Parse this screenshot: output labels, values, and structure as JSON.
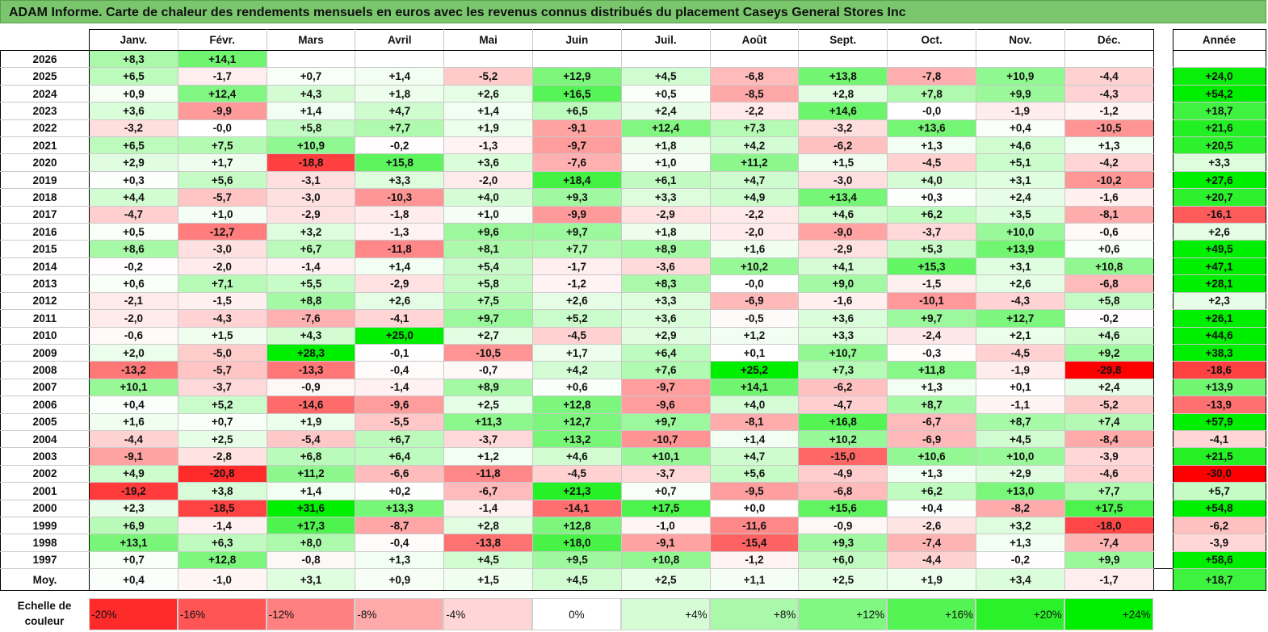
{
  "title": "ADAM Informe. Carte de chaleur des rendements mensuels en euros avec les revenus connus distribués du placement Caseys General Stores Inc",
  "chart_data": {
    "type": "heatmap",
    "months": [
      "Janv.",
      "Févr.",
      "Mars",
      "Avril",
      "Mai",
      "Juin",
      "Juil.",
      "Août",
      "Sept.",
      "Oct.",
      "Nov.",
      "Déc."
    ],
    "year_header": "Année",
    "rows": [
      {
        "year": "2026",
        "values": [
          "+8,3",
          "+14,1",
          "",
          "",
          "",
          "",
          "",
          "",
          "",
          "",
          "",
          ""
        ],
        "annual": ""
      },
      {
        "year": "2025",
        "values": [
          "+6,5",
          "-1,7",
          "+0,7",
          "+1,4",
          "-5,2",
          "+12,9",
          "+4,5",
          "-6,8",
          "+13,8",
          "-7,8",
          "+10,9",
          "-4,4"
        ],
        "annual": "+24,0"
      },
      {
        "year": "2024",
        "values": [
          "+0,9",
          "+12,4",
          "+4,3",
          "+1,8",
          "+2,6",
          "+16,5",
          "+0,5",
          "-8,5",
          "+2,8",
          "+7,8",
          "+9,9",
          "-4,3"
        ],
        "annual": "+54,2"
      },
      {
        "year": "2023",
        "values": [
          "+3,6",
          "-9,9",
          "+1,4",
          "+4,7",
          "+1,4",
          "+6,5",
          "+2,4",
          "-2,2",
          "+14,6",
          "-0,0",
          "-1,9",
          "-1,2"
        ],
        "annual": "+18,7"
      },
      {
        "year": "2022",
        "values": [
          "-3,2",
          "-0,0",
          "+5,8",
          "+7,7",
          "+1,9",
          "-9,1",
          "+12,4",
          "+7,3",
          "-3,2",
          "+13,6",
          "+0,4",
          "-10,5"
        ],
        "annual": "+21,6"
      },
      {
        "year": "2021",
        "values": [
          "+6,5",
          "+7,5",
          "+10,9",
          "-0,2",
          "-1,3",
          "-9,7",
          "+1,8",
          "+4,2",
          "-6,2",
          "+1,3",
          "+4,6",
          "+1,3"
        ],
        "annual": "+20,5"
      },
      {
        "year": "2020",
        "values": [
          "+2,9",
          "+1,7",
          "-18,8",
          "+15,8",
          "+3,6",
          "-7,6",
          "+1,0",
          "+11,2",
          "+1,5",
          "-4,5",
          "+5,1",
          "-4,2"
        ],
        "annual": "+3,3"
      },
      {
        "year": "2019",
        "values": [
          "+0,3",
          "+5,6",
          "-3,1",
          "+3,3",
          "-2,0",
          "+18,4",
          "+6,1",
          "+4,7",
          "-3,0",
          "+4,0",
          "+3,1",
          "-10,2"
        ],
        "annual": "+27,6"
      },
      {
        "year": "2018",
        "values": [
          "+4,4",
          "-5,7",
          "-3,0",
          "-10,3",
          "+4,0",
          "+9,3",
          "+3,3",
          "+4,9",
          "+13,4",
          "+0,3",
          "+2,4",
          "-1,6"
        ],
        "annual": "+20,7"
      },
      {
        "year": "2017",
        "values": [
          "-4,7",
          "+1,0",
          "-2,9",
          "-1,8",
          "+1,0",
          "-9,9",
          "-2,9",
          "-2,2",
          "+4,6",
          "+6,2",
          "+3,5",
          "-8,1"
        ],
        "annual": "-16,1"
      },
      {
        "year": "2016",
        "values": [
          "+0,5",
          "-12,7",
          "+3,2",
          "-1,3",
          "+9,6",
          "+9,7",
          "+1,8",
          "-2,0",
          "-9,0",
          "-3,7",
          "+10,0",
          "-0,6"
        ],
        "annual": "+2,6"
      },
      {
        "year": "2015",
        "values": [
          "+8,6",
          "-3,0",
          "+6,7",
          "-11,8",
          "+8,1",
          "+7,7",
          "+8,9",
          "+1,6",
          "-2,9",
          "+5,3",
          "+13,9",
          "+0,6"
        ],
        "annual": "+49,5"
      },
      {
        "year": "2014",
        "values": [
          "-0,2",
          "-2,0",
          "-1,4",
          "+1,4",
          "+5,4",
          "-1,7",
          "-3,6",
          "+10,2",
          "+4,1",
          "+15,3",
          "+3,1",
          "+10,8"
        ],
        "annual": "+47,1"
      },
      {
        "year": "2013",
        "values": [
          "+0,6",
          "+7,1",
          "+5,5",
          "-2,9",
          "+5,8",
          "-1,2",
          "+8,3",
          "-0,0",
          "+9,0",
          "-1,5",
          "+2,6",
          "-6,8"
        ],
        "annual": "+28,1"
      },
      {
        "year": "2012",
        "values": [
          "-2,1",
          "-1,5",
          "+8,8",
          "+2,6",
          "+7,5",
          "+2,6",
          "+3,3",
          "-6,9",
          "-1,6",
          "-10,1",
          "-4,3",
          "+5,8"
        ],
        "annual": "+2,3"
      },
      {
        "year": "2011",
        "values": [
          "-2,0",
          "-4,3",
          "-7,6",
          "-4,1",
          "+9,7",
          "+5,2",
          "+3,6",
          "-0,5",
          "+3,6",
          "+9,7",
          "+12,7",
          "-0,2"
        ],
        "annual": "+26,1"
      },
      {
        "year": "2010",
        "values": [
          "-0,6",
          "+1,5",
          "+4,3",
          "+25,0",
          "+2,7",
          "-4,5",
          "+2,9",
          "+1,2",
          "+3,3",
          "-2,4",
          "+2,1",
          "+4,6"
        ],
        "annual": "+44,6"
      },
      {
        "year": "2009",
        "values": [
          "+2,0",
          "-5,0",
          "+28,3",
          "-0,1",
          "-10,5",
          "+1,7",
          "+6,4",
          "+0,1",
          "+10,7",
          "-0,3",
          "-4,5",
          "+9,2"
        ],
        "annual": "+38,3"
      },
      {
        "year": "2008",
        "values": [
          "-13,2",
          "-5,7",
          "-13,3",
          "-0,4",
          "-0,7",
          "+4,2",
          "+7,6",
          "+25,2",
          "+7,3",
          "+11,8",
          "-1,9",
          "-29,8"
        ],
        "annual": "-18,6"
      },
      {
        "year": "2007",
        "values": [
          "+10,1",
          "-3,7",
          "-0,9",
          "-1,4",
          "+8,9",
          "+0,6",
          "-9,7",
          "+14,1",
          "-6,2",
          "+1,3",
          "+0,1",
          "+2,4"
        ],
        "annual": "+13,9"
      },
      {
        "year": "2006",
        "values": [
          "+0,4",
          "+5,2",
          "-14,6",
          "-9,6",
          "+2,5",
          "+12,8",
          "-9,6",
          "+4,0",
          "-4,7",
          "+8,7",
          "-1,1",
          "-5,2"
        ],
        "annual": "-13,9"
      },
      {
        "year": "2005",
        "values": [
          "+1,6",
          "+0,7",
          "+1,9",
          "-5,5",
          "+11,3",
          "+12,7",
          "+9,7",
          "-8,1",
          "+16,8",
          "-6,7",
          "+8,7",
          "+7,4"
        ],
        "annual": "+57,9"
      },
      {
        "year": "2004",
        "values": [
          "-4,4",
          "+2,5",
          "-5,4",
          "+6,7",
          "-3,7",
          "+13,2",
          "-10,7",
          "+1,4",
          "+10,2",
          "-6,9",
          "+4,5",
          "-8,4"
        ],
        "annual": "-4,1"
      },
      {
        "year": "2003",
        "values": [
          "-9,1",
          "-2,8",
          "+6,8",
          "+6,4",
          "+1,2",
          "+4,6",
          "+10,1",
          "+4,7",
          "-15,0",
          "+10,6",
          "+10,0",
          "-3,9"
        ],
        "annual": "+21,5"
      },
      {
        "year": "2002",
        "values": [
          "+4,9",
          "-20,8",
          "+11,2",
          "-6,6",
          "-11,8",
          "-4,5",
          "-3,7",
          "+5,6",
          "-4,9",
          "+1,3",
          "+2,9",
          "-4,6"
        ],
        "annual": "-30,0"
      },
      {
        "year": "2001",
        "values": [
          "-19,2",
          "+3,8",
          "+1,4",
          "+0,2",
          "-6,7",
          "+21,3",
          "+0,7",
          "-9,5",
          "-6,8",
          "+6,2",
          "+13,0",
          "+7,7"
        ],
        "annual": "+5,7"
      },
      {
        "year": "2000",
        "values": [
          "+2,3",
          "-18,5",
          "+31,6",
          "+13,3",
          "-1,4",
          "-14,1",
          "+17,5",
          "+0,0",
          "+15,6",
          "+0,4",
          "-8,2",
          "+17,5"
        ],
        "annual": "+54,8"
      },
      {
        "year": "1999",
        "values": [
          "+6,9",
          "-1,4",
          "+17,3",
          "-8,7",
          "+2,8",
          "+12,8",
          "-1,0",
          "-11,6",
          "-0,9",
          "-2,6",
          "+3,2",
          "-18,0"
        ],
        "annual": "-6,2"
      },
      {
        "year": "1998",
        "values": [
          "+13,1",
          "+6,3",
          "+8,0",
          "-0,4",
          "-13,8",
          "+18,0",
          "-9,1",
          "-15,4",
          "+9,3",
          "-7,4",
          "+1,3",
          "-7,4"
        ],
        "annual": "-3,9"
      },
      {
        "year": "1997",
        "values": [
          "+0,7",
          "+12,8",
          "-0,8",
          "+1,3",
          "+4,5",
          "+9,5",
          "+10,8",
          "-1,2",
          "+6,0",
          "-4,4",
          "-0,2",
          "+9,9"
        ],
        "annual": "+58,6"
      }
    ],
    "average": {
      "label": "Moy.",
      "values": [
        "+0,4",
        "-1,0",
        "+3,1",
        "+0,9",
        "+1,5",
        "+4,5",
        "+2,5",
        "+1,1",
        "+2,5",
        "+1,9",
        "+3,4",
        "-1,7"
      ],
      "annual": "+18,7"
    },
    "legend": {
      "label_line1": "Echelle de",
      "label_line2": "couleur",
      "steps": [
        "-20%",
        "-16%",
        "-12%",
        "-8%",
        "-4%",
        "0%",
        "+4%",
        "+8%",
        "+12%",
        "+16%",
        "+20%",
        "+24%"
      ]
    },
    "colors": {
      "negative_max": "#ff0000",
      "neutral": "#ffffff",
      "positive_max": "#00ee00"
    }
  }
}
